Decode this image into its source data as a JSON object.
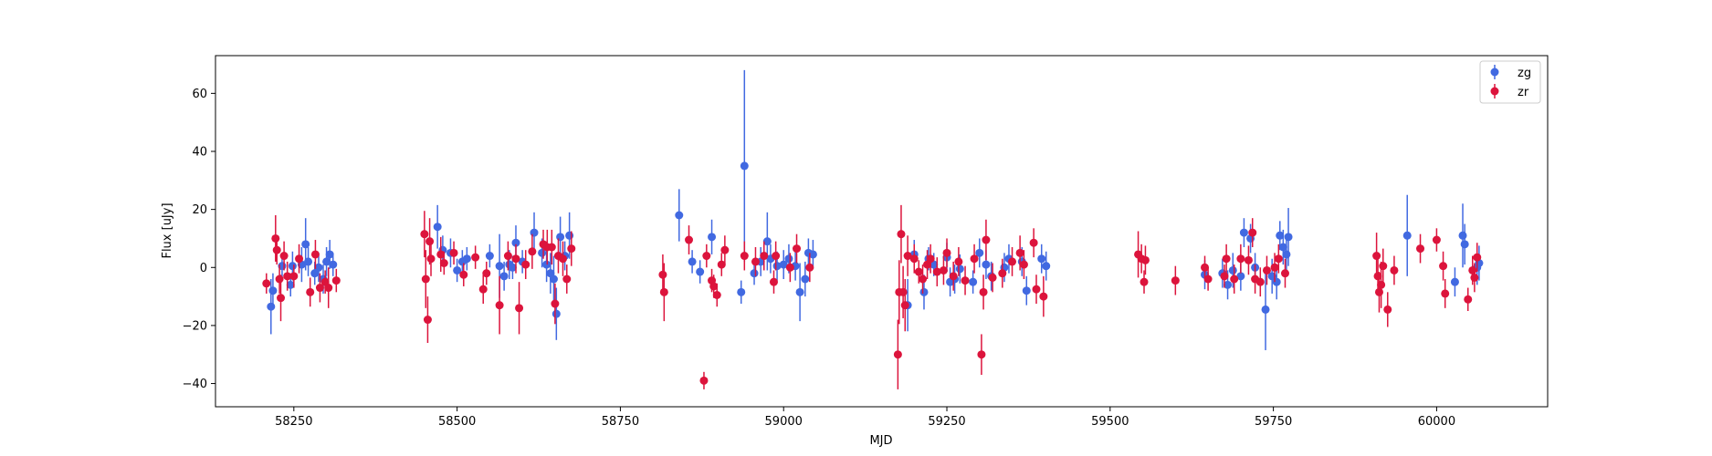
{
  "chart_data": {
    "type": "scatter",
    "xlabel": "MJD",
    "ylabel": "Flux [uJy]",
    "xlim": [
      58130,
      60170
    ],
    "ylim": [
      -48,
      73
    ],
    "xticks": [
      58250,
      58500,
      58750,
      59000,
      59250,
      59500,
      59750,
      60000
    ],
    "yticks": [
      -40,
      -20,
      0,
      20,
      40,
      60
    ],
    "grid": false,
    "legend_position": "top-right",
    "series": [
      {
        "name": "zg",
        "color": "#4169e1",
        "points": [
          [
            58215,
            -13.5,
            9.5
          ],
          [
            58218,
            -8,
            6
          ],
          [
            58232,
            0.5,
            4
          ],
          [
            58245,
            -6,
            4
          ],
          [
            58248,
            0.5,
            5
          ],
          [
            58262,
            1,
            6
          ],
          [
            58268,
            8,
            9
          ],
          [
            58272,
            2,
            5
          ],
          [
            58282,
            -2,
            4
          ],
          [
            58288,
            0,
            5
          ],
          [
            58295,
            -4,
            5
          ],
          [
            58300,
            2,
            5
          ],
          [
            58305,
            4.5,
            5
          ],
          [
            58310,
            1,
            4
          ],
          [
            58470,
            14,
            7.5
          ],
          [
            58478,
            6,
            5
          ],
          [
            58490,
            5,
            5
          ],
          [
            58500,
            -1,
            4
          ],
          [
            58508,
            2,
            4
          ],
          [
            58515,
            3,
            4
          ],
          [
            58550,
            4,
            4
          ],
          [
            58565,
            0.5,
            11
          ],
          [
            58572,
            -3,
            5
          ],
          [
            58580,
            1,
            5
          ],
          [
            58585,
            0,
            4
          ],
          [
            58590,
            8.5,
            6
          ],
          [
            58600,
            2,
            4
          ],
          [
            58618,
            12,
            7
          ],
          [
            58630,
            5,
            5
          ],
          [
            58637,
            1,
            6
          ],
          [
            58643,
            -2,
            7
          ],
          [
            58648,
            -4,
            8
          ],
          [
            58652,
            -16,
            9
          ],
          [
            58658,
            10.5,
            7
          ],
          [
            58665,
            4,
            5
          ],
          [
            58672,
            11,
            8
          ],
          [
            58840,
            18,
            9
          ],
          [
            58860,
            2,
            4
          ],
          [
            58872,
            -1.5,
            4
          ],
          [
            58890,
            10.5,
            6
          ],
          [
            58935,
            -8.5,
            4
          ],
          [
            58940,
            35,
            33
          ],
          [
            58955,
            -2,
            4
          ],
          [
            58965,
            2,
            5
          ],
          [
            58975,
            9,
            10
          ],
          [
            58980,
            3,
            5
          ],
          [
            58990,
            0.5,
            5
          ],
          [
            59000,
            1,
            5
          ],
          [
            59008,
            3,
            5
          ],
          [
            59018,
            0.5,
            5
          ],
          [
            59025,
            -8.5,
            10
          ],
          [
            59033,
            -4,
            6
          ],
          [
            59038,
            5,
            5
          ],
          [
            59045,
            4.5,
            5
          ],
          [
            59190,
            -13,
            9
          ],
          [
            59200,
            4.5,
            5
          ],
          [
            59215,
            -8.5,
            6
          ],
          [
            59222,
            3,
            4
          ],
          [
            59230,
            1,
            4
          ],
          [
            59250,
            3.5,
            5
          ],
          [
            59255,
            -5,
            5
          ],
          [
            59262,
            -4,
            5
          ],
          [
            59270,
            -0.5,
            5
          ],
          [
            59290,
            -5,
            4
          ],
          [
            59300,
            5,
            5
          ],
          [
            59310,
            1,
            5
          ],
          [
            59318,
            -3,
            5
          ],
          [
            59338,
            0,
            5
          ],
          [
            59345,
            3,
            5
          ],
          [
            59365,
            2,
            5
          ],
          [
            59372,
            -8,
            5
          ],
          [
            59395,
            3,
            5
          ],
          [
            59402,
            0.5,
            5
          ],
          [
            59645,
            -2.5,
            5
          ],
          [
            59672,
            -2,
            5
          ],
          [
            59680,
            -6,
            5
          ],
          [
            59688,
            -1,
            6
          ],
          [
            59700,
            -3,
            5
          ],
          [
            59705,
            12,
            5
          ],
          [
            59715,
            10,
            5
          ],
          [
            59722,
            0,
            5
          ],
          [
            59738,
            -14.5,
            14
          ],
          [
            59748,
            -3,
            6
          ],
          [
            59755,
            -5,
            6
          ],
          [
            59760,
            11,
            5
          ],
          [
            59765,
            7,
            6
          ],
          [
            59770,
            4.5,
            6
          ],
          [
            59773,
            10.5,
            10
          ],
          [
            59955,
            11,
            14
          ],
          [
            60028,
            -5,
            5
          ],
          [
            60040,
            11,
            11
          ],
          [
            60043,
            8,
            7
          ],
          [
            60062,
            0,
            6
          ],
          [
            60065,
            1.5,
            6
          ]
        ]
      },
      {
        "name": "zr",
        "color": "#dc143c",
        "points": [
          [
            58208,
            -5.5,
            3.5
          ],
          [
            58222,
            10,
            8
          ],
          [
            58224,
            6,
            5
          ],
          [
            58228,
            -4,
            5
          ],
          [
            58230,
            -10.5,
            8
          ],
          [
            58235,
            4,
            5
          ],
          [
            58240,
            -3,
            5
          ],
          [
            58250,
            -3,
            4
          ],
          [
            58258,
            3,
            5
          ],
          [
            58275,
            -8.5,
            5
          ],
          [
            58283,
            4.5,
            5
          ],
          [
            58290,
            -7,
            5
          ],
          [
            58298,
            -5,
            4
          ],
          [
            58303,
            -7,
            7
          ],
          [
            58315,
            -4.5,
            4
          ],
          [
            58450,
            11.5,
            8
          ],
          [
            58452,
            -4,
            10
          ],
          [
            58455,
            -18,
            8
          ],
          [
            58458,
            9,
            8
          ],
          [
            58460,
            3,
            6
          ],
          [
            58475,
            4.5,
            6
          ],
          [
            58480,
            1.5,
            4
          ],
          [
            58495,
            5,
            4
          ],
          [
            58510,
            -2.5,
            4
          ],
          [
            58528,
            3.5,
            4
          ],
          [
            58540,
            -7.5,
            5
          ],
          [
            58545,
            -2,
            4
          ],
          [
            58565,
            -13,
            10
          ],
          [
            58578,
            4,
            5
          ],
          [
            58590,
            3,
            5
          ],
          [
            58595,
            -14,
            9
          ],
          [
            58605,
            1,
            5
          ],
          [
            58615,
            5.5,
            6
          ],
          [
            58632,
            8,
            5
          ],
          [
            58638,
            7,
            6
          ],
          [
            58645,
            7,
            6
          ],
          [
            58650,
            -12.5,
            7
          ],
          [
            58655,
            4,
            6
          ],
          [
            58662,
            3,
            6
          ],
          [
            58668,
            -4,
            5
          ],
          [
            58675,
            6.5,
            6
          ],
          [
            58815,
            -2.5,
            7
          ],
          [
            58817,
            -8.5,
            10
          ],
          [
            58855,
            9.5,
            5
          ],
          [
            58878,
            -39,
            3
          ],
          [
            58882,
            4,
            4
          ],
          [
            58890,
            -4.5,
            4
          ],
          [
            58893,
            -6.5,
            4
          ],
          [
            58898,
            -9.5,
            4
          ],
          [
            58905,
            1,
            4
          ],
          [
            58910,
            6,
            5
          ],
          [
            58940,
            4,
            5
          ],
          [
            58957,
            2,
            5
          ],
          [
            58970,
            4,
            5
          ],
          [
            58985,
            -5,
            4
          ],
          [
            58988,
            4,
            5
          ],
          [
            59010,
            0,
            5
          ],
          [
            59020,
            6.5,
            5
          ],
          [
            59040,
            0,
            5
          ],
          [
            59175,
            -30,
            12
          ],
          [
            59177,
            -8.5,
            11
          ],
          [
            59180,
            11.5,
            10
          ],
          [
            59183,
            -8.5,
            9
          ],
          [
            59186,
            -13,
            9
          ],
          [
            59190,
            4,
            7
          ],
          [
            59200,
            3,
            5
          ],
          [
            59207,
            -1.5,
            4
          ],
          [
            59213,
            -4,
            5
          ],
          [
            59220,
            1,
            5
          ],
          [
            59225,
            3,
            5
          ],
          [
            59235,
            -1.5,
            5
          ],
          [
            59245,
            -1,
            5
          ],
          [
            59250,
            5,
            5
          ],
          [
            59260,
            -3,
            5
          ],
          [
            59268,
            2,
            5
          ],
          [
            59278,
            -4.5,
            5
          ],
          [
            59292,
            3,
            5
          ],
          [
            59303,
            -30,
            7
          ],
          [
            59306,
            -8.5,
            6
          ],
          [
            59310,
            9.5,
            7
          ],
          [
            59320,
            -3.5,
            5
          ],
          [
            59335,
            -2,
            5
          ],
          [
            59350,
            2,
            5
          ],
          [
            59362,
            5,
            6
          ],
          [
            59368,
            1,
            5
          ],
          [
            59383,
            8.5,
            5
          ],
          [
            59387,
            -7.5,
            5
          ],
          [
            59398,
            -10,
            7
          ],
          [
            59543,
            4.5,
            8
          ],
          [
            59548,
            3,
            5
          ],
          [
            59552,
            -5,
            4
          ],
          [
            59554,
            2.5,
            5
          ],
          [
            59600,
            -4.5,
            5
          ],
          [
            59645,
            0,
            4
          ],
          [
            59650,
            -4,
            4
          ],
          [
            59675,
            -3,
            4
          ],
          [
            59678,
            3,
            5
          ],
          [
            59690,
            -4,
            5
          ],
          [
            59700,
            3,
            5
          ],
          [
            59712,
            2.5,
            5
          ],
          [
            59718,
            12,
            5
          ],
          [
            59722,
            -4,
            5
          ],
          [
            59730,
            -5,
            5
          ],
          [
            59740,
            -1,
            5
          ],
          [
            59752,
            0,
            5
          ],
          [
            59758,
            3,
            5
          ],
          [
            59768,
            -2,
            5
          ],
          [
            59908,
            4,
            8
          ],
          [
            59910,
            -3,
            6
          ],
          [
            59912,
            -8.5,
            7
          ],
          [
            59915,
            -6,
            8
          ],
          [
            59918,
            0.5,
            6
          ],
          [
            59925,
            -14.5,
            6
          ],
          [
            59935,
            -1,
            5
          ],
          [
            59975,
            6.5,
            5
          ],
          [
            60000,
            9.5,
            4
          ],
          [
            60010,
            0.5,
            5
          ],
          [
            60013,
            -9,
            5
          ],
          [
            60048,
            -11,
            4
          ],
          [
            60055,
            -1,
            5
          ],
          [
            60058,
            -3.5,
            5
          ],
          [
            60062,
            3.5,
            5
          ]
        ]
      }
    ]
  }
}
